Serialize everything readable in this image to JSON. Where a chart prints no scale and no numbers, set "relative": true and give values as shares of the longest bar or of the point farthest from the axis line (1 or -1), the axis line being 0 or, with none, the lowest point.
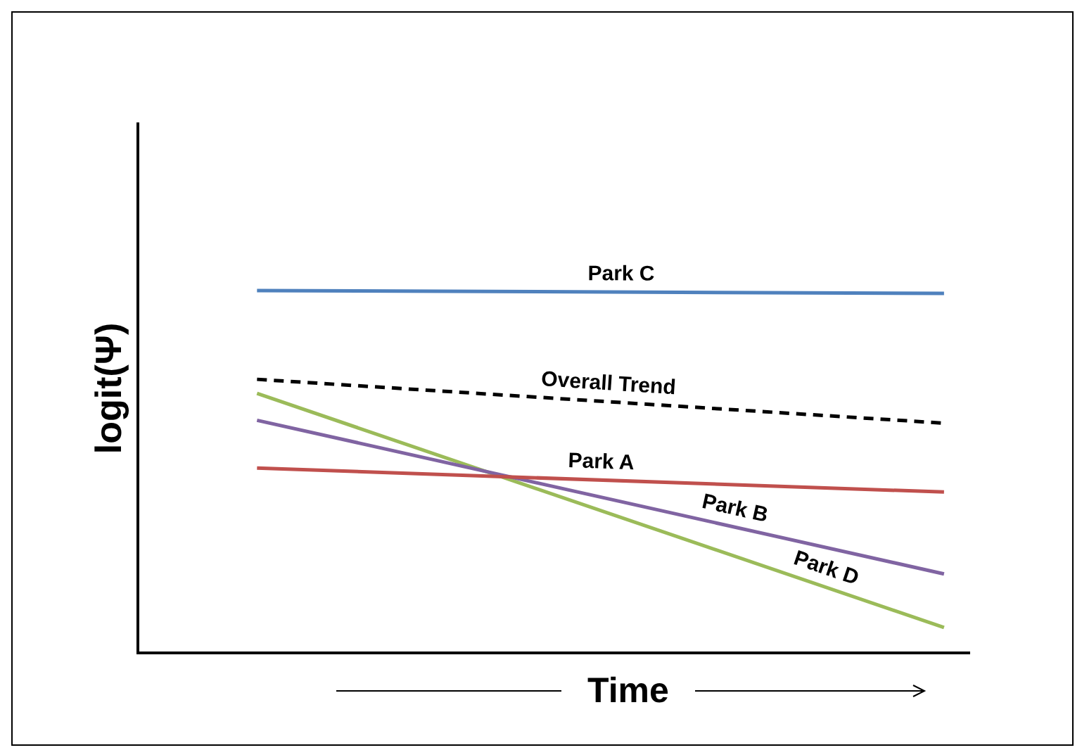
{
  "chart_data": {
    "type": "line",
    "relative": true,
    "xlabel": "Time",
    "ylabel": "logit(Ψ)",
    "categories": [
      null,
      null
    ],
    "legend": false,
    "grid": false,
    "series": [
      {
        "name": "Park C",
        "color": "#4f81bd",
        "values": [
          1,
          0.992
        ]
      },
      {
        "name": "Overall Trend",
        "color": "#000000",
        "values": [
          0.755,
          0.634
        ],
        "line_style": "dashed"
      },
      {
        "name": "Park A",
        "color": "#c0504d",
        "values": [
          0.51,
          0.444
        ]
      },
      {
        "name": "Park B",
        "color": "#8064a2",
        "values": [
          0.642,
          0.218
        ]
      },
      {
        "name": "Park D",
        "color": "#9bbb59",
        "values": [
          0.716,
          0.07
        ]
      }
    ]
  }
}
